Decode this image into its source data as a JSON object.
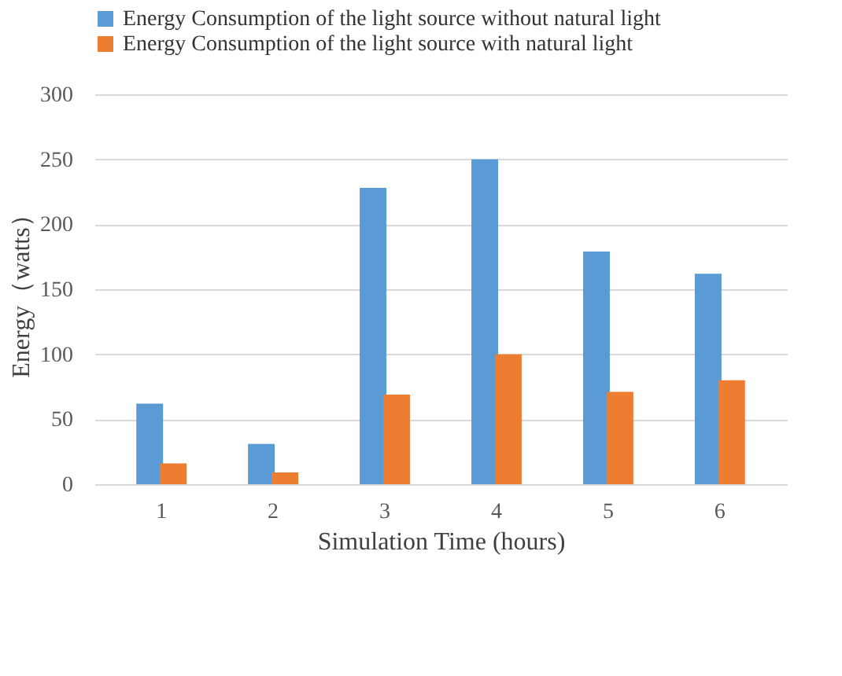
{
  "chart_data": {
    "type": "bar",
    "xlabel": "Simulation Time (hours)",
    "ylabel": "Energy（watts）",
    "categories": [
      "1",
      "2",
      "3",
      "4",
      "5",
      "6"
    ],
    "series": [
      {
        "name": "Energy Consumption of the light source without natural light",
        "color": "#5b9bd5",
        "values": [
          62,
          31,
          228,
          250,
          179,
          162
        ]
      },
      {
        "name": "Energy Consumption of the light source with natural light",
        "color": "#ed7d31",
        "values": [
          16,
          9,
          69,
          100,
          71,
          80
        ]
      }
    ],
    "ylim": [
      0,
      300
    ],
    "yticks": [
      0,
      50,
      100,
      150,
      200,
      250,
      300
    ],
    "grid": "y",
    "legend": "top"
  }
}
